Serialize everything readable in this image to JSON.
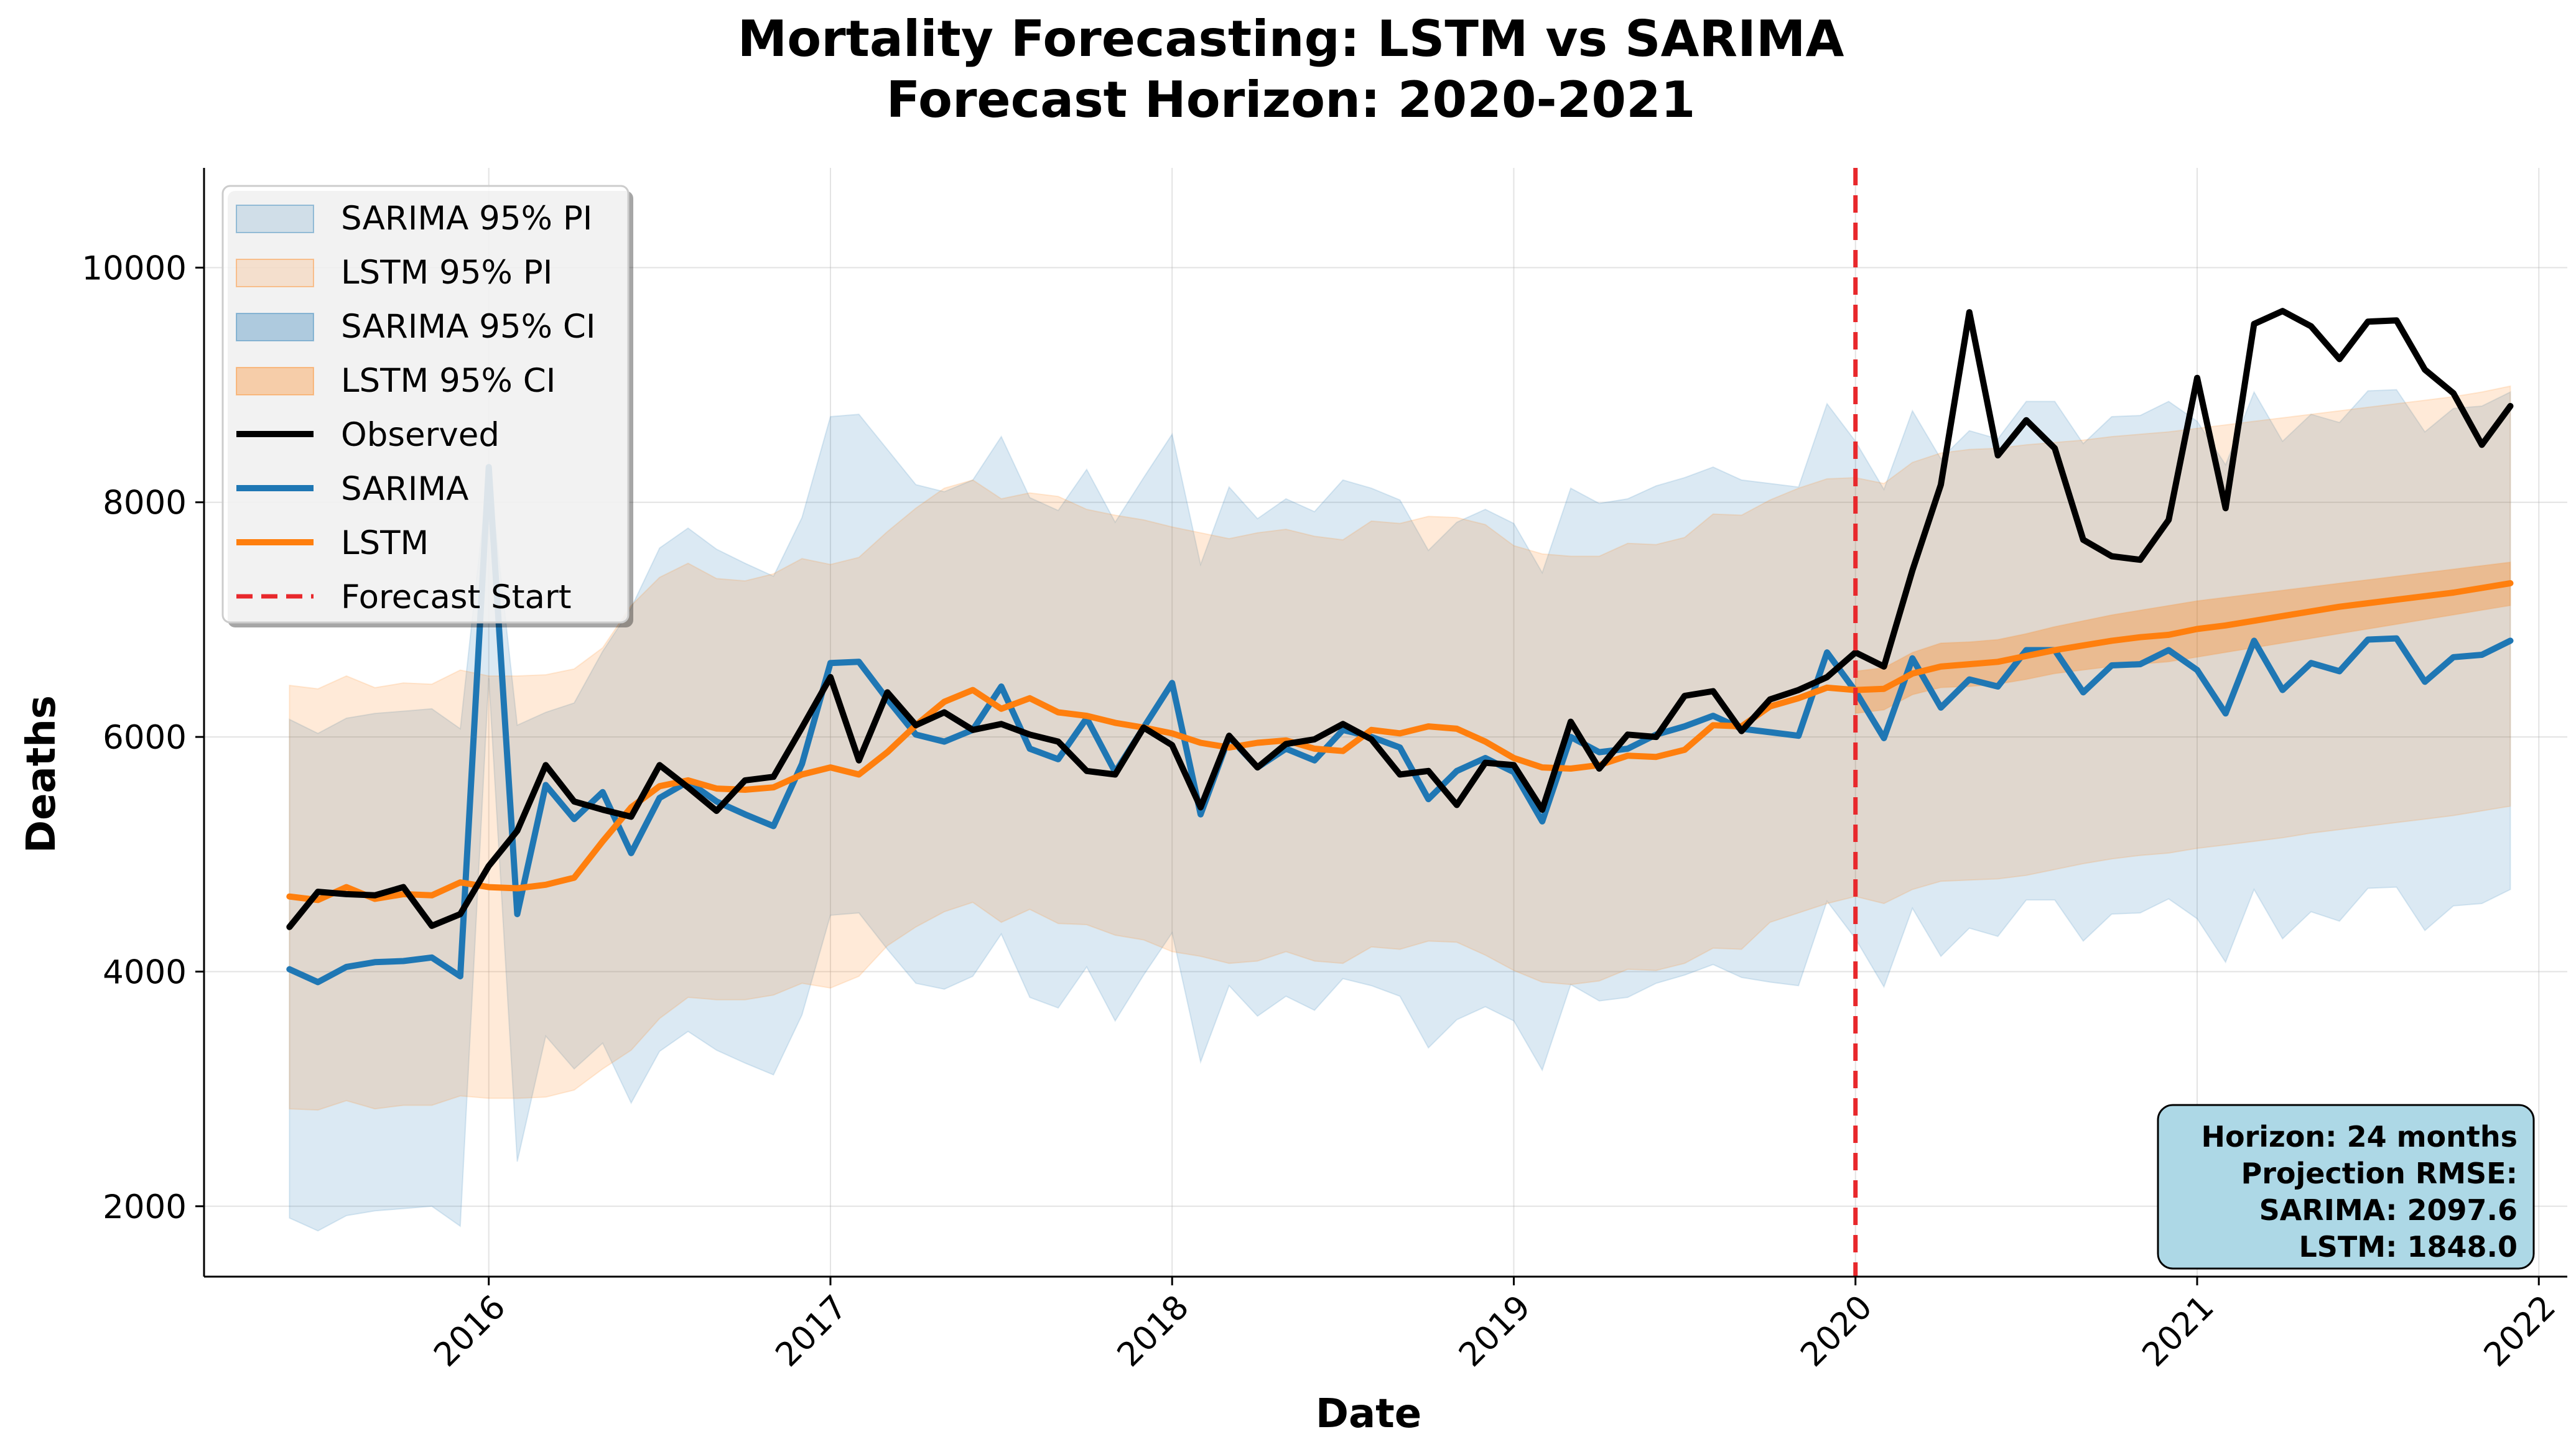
{
  "chart_data": {
    "type": "line",
    "title": "Mortality Forecasting: LSTM vs SARIMA",
    "subtitle": "Forecast Horizon: 2020-2021",
    "xlabel": "Date",
    "ylabel": "Deaths",
    "xlim": [
      "2015-03",
      "2022-02"
    ],
    "ylim": [
      1400,
      10850
    ],
    "x_ticks": [
      "2016",
      "2017",
      "2018",
      "2019",
      "2020",
      "2021",
      "2022"
    ],
    "y_ticks": [
      2000,
      4000,
      6000,
      8000,
      10000
    ],
    "grid": true,
    "legend_position": "top-left",
    "x": [
      "2015-06",
      "2015-07",
      "2015-08",
      "2015-09",
      "2015-10",
      "2015-11",
      "2015-12",
      "2016-01",
      "2016-02",
      "2016-03",
      "2016-04",
      "2016-05",
      "2016-06",
      "2016-07",
      "2016-08",
      "2016-09",
      "2016-10",
      "2016-11",
      "2016-12",
      "2017-01",
      "2017-02",
      "2017-03",
      "2017-04",
      "2017-05",
      "2017-06",
      "2017-07",
      "2017-08",
      "2017-09",
      "2017-10",
      "2017-11",
      "2017-12",
      "2018-01",
      "2018-02",
      "2018-03",
      "2018-04",
      "2018-05",
      "2018-06",
      "2018-07",
      "2018-08",
      "2018-09",
      "2018-10",
      "2018-11",
      "2018-12",
      "2019-01",
      "2019-02",
      "2019-03",
      "2019-04",
      "2019-05",
      "2019-06",
      "2019-07",
      "2019-08",
      "2019-09",
      "2019-10",
      "2019-11",
      "2019-12",
      "2020-01",
      "2020-02",
      "2020-03",
      "2020-04",
      "2020-05",
      "2020-06",
      "2020-07",
      "2020-08",
      "2020-09",
      "2020-10",
      "2020-11",
      "2020-12",
      "2021-01",
      "2021-02",
      "2021-03",
      "2021-04",
      "2021-05",
      "2021-06",
      "2021-07",
      "2021-08",
      "2021-09",
      "2021-10",
      "2021-11",
      "2021-12"
    ],
    "series": [
      {
        "name": "SARIMA 95% PI",
        "kind": "band",
        "color": "#1f77b4",
        "opacity": 0.16,
        "lower": [
          1900,
          1790,
          1920,
          1960,
          1980,
          2000,
          1830,
          6500,
          2380,
          3450,
          3170,
          3390,
          2880,
          3320,
          3490,
          3330,
          3220,
          3120,
          3630,
          4480,
          4500,
          4190,
          3900,
          3850,
          3960,
          4320,
          3780,
          3690,
          4040,
          3580,
          3970,
          4330,
          3230,
          3880,
          3620,
          3790,
          3670,
          3940,
          3880,
          3790,
          3350,
          3590,
          3700,
          3580,
          3160,
          3890,
          3750,
          3780,
          3900,
          3970,
          4060,
          3950,
          3910,
          3880,
          4600,
          4280,
          3870,
          4540,
          4130,
          4370,
          4300,
          4610,
          4610,
          4260,
          4490,
          4500,
          4620,
          4450,
          4080,
          4700,
          4280,
          4510,
          4430,
          4710,
          4720,
          4350,
          4560,
          4580,
          4700
        ],
        "upper": [
          6150,
          6030,
          6160,
          6200,
          6220,
          6240,
          6070,
          8300,
          6100,
          6210,
          6290,
          6730,
          7100,
          7610,
          7780,
          7600,
          7480,
          7370,
          7870,
          8730,
          8750,
          8450,
          8150,
          8090,
          8190,
          8560,
          8040,
          7930,
          8280,
          7830,
          8210,
          8580,
          7470,
          8130,
          7860,
          8030,
          7920,
          8190,
          8120,
          8020,
          7590,
          7830,
          7940,
          7820,
          7400,
          8120,
          7990,
          8030,
          8140,
          8210,
          8300,
          8190,
          8160,
          8130,
          8840,
          8520,
          8110,
          8780,
          8370,
          8610,
          8540,
          8860,
          8860,
          8500,
          8730,
          8740,
          8860,
          8690,
          8320,
          8940,
          8520,
          8750,
          8680,
          8950,
          8960,
          8600,
          8800,
          8820,
          8940
        ]
      },
      {
        "name": "LSTM 95% PI",
        "kind": "band",
        "color": "#ff7f0e",
        "opacity": 0.16,
        "lower": [
          2830,
          2820,
          2900,
          2830,
          2860,
          2860,
          2940,
          2920,
          2920,
          2930,
          2990,
          3170,
          3330,
          3600,
          3780,
          3760,
          3760,
          3800,
          3900,
          3860,
          3960,
          4220,
          4380,
          4510,
          4590,
          4420,
          4530,
          4410,
          4400,
          4310,
          4270,
          4170,
          4130,
          4070,
          4090,
          4170,
          4090,
          4070,
          4210,
          4190,
          4260,
          4250,
          4140,
          4010,
          3910,
          3890,
          3920,
          4020,
          4010,
          4070,
          4200,
          4190,
          4420,
          4500,
          4580,
          4640,
          4580,
          4700,
          4770,
          4780,
          4790,
          4820,
          4870,
          4920,
          4960,
          4990,
          5010,
          5050,
          5080,
          5110,
          5140,
          5180,
          5210,
          5240,
          5270,
          5300,
          5330,
          5370,
          5410
        ],
        "upper": [
          6440,
          6410,
          6520,
          6420,
          6460,
          6450,
          6570,
          6520,
          6520,
          6530,
          6580,
          6760,
          7120,
          7360,
          7480,
          7350,
          7330,
          7390,
          7520,
          7470,
          7530,
          7750,
          7950,
          8120,
          8190,
          8030,
          8080,
          8050,
          7940,
          7890,
          7850,
          7790,
          7740,
          7690,
          7740,
          7770,
          7710,
          7680,
          7840,
          7820,
          7880,
          7870,
          7810,
          7630,
          7560,
          7540,
          7540,
          7650,
          7640,
          7700,
          7900,
          7890,
          8020,
          8120,
          8200,
          8210,
          8160,
          8340,
          8420,
          8450,
          8460,
          8490,
          8510,
          8530,
          8560,
          8580,
          8600,
          8630,
          8660,
          8690,
          8720,
          8750,
          8780,
          8810,
          8840,
          8870,
          8900,
          8940,
          8990
        ]
      },
      {
        "name": "SARIMA 95% CI",
        "kind": "band",
        "color": "#1f77b4",
        "opacity": 0.32,
        "lower": [],
        "upper": []
      },
      {
        "name": "LSTM 95% CI",
        "kind": "band",
        "color": "#ff7f0e",
        "opacity": 0.32,
        "lower": [
          null,
          null,
          null,
          null,
          null,
          null,
          null,
          null,
          null,
          null,
          null,
          null,
          null,
          null,
          null,
          null,
          null,
          null,
          null,
          null,
          null,
          null,
          null,
          null,
          null,
          null,
          null,
          null,
          null,
          null,
          null,
          null,
          null,
          null,
          null,
          null,
          null,
          null,
          null,
          null,
          null,
          null,
          null,
          null,
          null,
          null,
          null,
          null,
          null,
          null,
          null,
          null,
          null,
          null,
          null,
          6200,
          6230,
          6360,
          6420,
          6430,
          6450,
          6490,
          6540,
          6570,
          6600,
          6620,
          6640,
          6680,
          6720,
          6760,
          6800,
          6840,
          6880,
          6920,
          6960,
          7000,
          7040,
          7080,
          7120
        ],
        "upper": [
          null,
          null,
          null,
          null,
          null,
          null,
          null,
          null,
          null,
          null,
          null,
          null,
          null,
          null,
          null,
          null,
          null,
          null,
          null,
          null,
          null,
          null,
          null,
          null,
          null,
          null,
          null,
          null,
          null,
          null,
          null,
          null,
          null,
          null,
          null,
          null,
          null,
          null,
          null,
          null,
          null,
          null,
          null,
          null,
          null,
          null,
          null,
          null,
          null,
          null,
          null,
          null,
          null,
          null,
          null,
          6560,
          6590,
          6720,
          6800,
          6810,
          6830,
          6880,
          6940,
          6990,
          7040,
          7080,
          7120,
          7160,
          7190,
          7220,
          7250,
          7280,
          7310,
          7340,
          7370,
          7400,
          7430,
          7460,
          7490
        ]
      },
      {
        "name": "Observed",
        "kind": "line",
        "color": "#000000",
        "width": 10,
        "values": [
          4380,
          4680,
          4660,
          4650,
          4720,
          4390,
          4490,
          4900,
          5200,
          5760,
          5450,
          5380,
          5320,
          5760,
          5570,
          5370,
          5630,
          5660,
          6080,
          6510,
          5800,
          6380,
          6100,
          6210,
          6060,
          6110,
          6020,
          5960,
          5710,
          5680,
          6080,
          5930,
          5400,
          6010,
          5740,
          5940,
          5980,
          6110,
          5980,
          5680,
          5710,
          5420,
          5780,
          5760,
          5380,
          6130,
          5730,
          6020,
          6000,
          6350,
          6390,
          6050,
          6320,
          6400,
          6510,
          6720,
          6600,
          7420,
          8150,
          9620,
          8400,
          8700,
          8460,
          7680,
          7540,
          7510,
          7850,
          9060,
          7950,
          9520,
          9630,
          9500,
          9220,
          9540,
          9550,
          9130,
          8930,
          8490,
          8820
        ]
      },
      {
        "name": "SARIMA",
        "kind": "line",
        "color": "#1f77b4",
        "width": 10,
        "values": [
          4020,
          3910,
          4040,
          4080,
          4090,
          4120,
          3960,
          8300,
          4490,
          5590,
          5300,
          5530,
          5010,
          5480,
          5620,
          5450,
          5340,
          5240,
          5770,
          6630,
          6640,
          6320,
          6020,
          5960,
          6060,
          6430,
          5900,
          5810,
          6160,
          5700,
          6080,
          6460,
          5340,
          6000,
          5740,
          5900,
          5800,
          6060,
          6000,
          5910,
          5470,
          5710,
          5820,
          5700,
          5280,
          6000,
          5870,
          5900,
          6020,
          6090,
          6180,
          6070,
          6040,
          6010,
          6720,
          6390,
          5990,
          6670,
          6250,
          6490,
          6430,
          6740,
          6740,
          6380,
          6610,
          6620,
          6740,
          6570,
          6200,
          6820,
          6400,
          6630,
          6560,
          6830,
          6840,
          6470,
          6680,
          6700,
          6820
        ]
      },
      {
        "name": "LSTM",
        "kind": "line",
        "color": "#ff7f0e",
        "width": 10,
        "values": [
          4640,
          4610,
          4720,
          4620,
          4660,
          4650,
          4760,
          4720,
          4710,
          4740,
          4800,
          5110,
          5400,
          5580,
          5630,
          5560,
          5550,
          5570,
          5680,
          5740,
          5680,
          5870,
          6100,
          6300,
          6400,
          6240,
          6330,
          6210,
          6180,
          6120,
          6080,
          6030,
          5950,
          5910,
          5950,
          5970,
          5900,
          5880,
          6060,
          6030,
          6090,
          6070,
          5960,
          5820,
          5740,
          5730,
          5760,
          5840,
          5830,
          5890,
          6100,
          6090,
          6260,
          6330,
          6420,
          6400,
          6410,
          6540,
          6600,
          6620,
          6640,
          6690,
          6740,
          6780,
          6820,
          6850,
          6870,
          6920,
          6950,
          6990,
          7030,
          7070,
          7110,
          7140,
          7170,
          7200,
          7230,
          7270,
          7310
        ]
      }
    ],
    "forecast_start": "2020-01",
    "forecast_line": {
      "name": "Forecast Start",
      "color": "#e8282c"
    }
  },
  "stats_box": {
    "lines": [
      "Horizon: 24 months",
      "Projection RMSE:",
      "SARIMA: 2097.6",
      "LSTM: 1848.0"
    ],
    "background": "#add8e6"
  }
}
